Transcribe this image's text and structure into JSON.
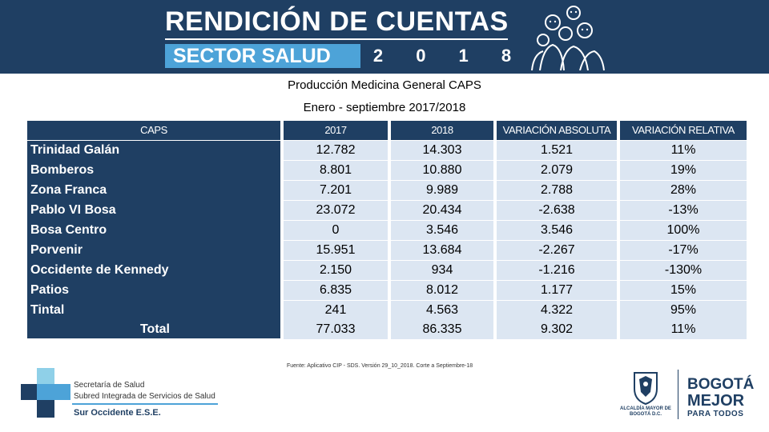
{
  "header": {
    "title": "RENDICIÓN DE CUENTAS",
    "sector": "SECTOR SALUD",
    "year_digits": [
      "2",
      "0",
      "1",
      "8"
    ]
  },
  "subtitle": "Producción Medicina General CAPS",
  "period": "Enero - septiembre 2017/2018",
  "table": {
    "headers": [
      "CAPS",
      "2017",
      "2018",
      "VARIACIÓN ABSOLUTA",
      "VARIACIÓN RELATIVA"
    ],
    "rows": [
      {
        "name": "Trinidad Galán",
        "y2017": "12.782",
        "y2018": "14.303",
        "abs": "1.521",
        "rel": "11%"
      },
      {
        "name": "Bomberos",
        "y2017": "8.801",
        "y2018": "10.880",
        "abs": "2.079",
        "rel": "19%"
      },
      {
        "name": "Zona Franca",
        "y2017": "7.201",
        "y2018": "9.989",
        "abs": "2.788",
        "rel": "28%"
      },
      {
        "name": "Pablo VI Bosa",
        "y2017": "23.072",
        "y2018": "20.434",
        "abs": "-2.638",
        "rel": "-13%"
      },
      {
        "name": "Bosa Centro",
        "y2017": "0",
        "y2018": "3.546",
        "abs": "3.546",
        "rel": "100%"
      },
      {
        "name": "Porvenir",
        "y2017": "15.951",
        "y2018": "13.684",
        "abs": "-2.267",
        "rel": "-17%"
      },
      {
        "name": "Occidente de Kennedy",
        "y2017": "2.150",
        "y2018": "934",
        "abs": "-1.216",
        "rel": "-130%"
      },
      {
        "name": "Patios",
        "y2017": "6.835",
        "y2018": "8.012",
        "abs": "1.177",
        "rel": "15%"
      },
      {
        "name": "Tintal",
        "y2017": "241",
        "y2018": "4.563",
        "abs": "4.322",
        "rel": "95%"
      },
      {
        "name": "Total",
        "y2017": "77.033",
        "y2018": "86.335",
        "abs": "9.302",
        "rel": "11%"
      }
    ]
  },
  "source_note": "Fuente: Aplicativo CIP - SDS. Versión 29_10_2018. Corte a Septiembre-18",
  "logo_left": {
    "line1": "Secretaría de Salud",
    "line2": "Subred Integrada de Servicios de Salud",
    "line3": "Sur Occidente E.S.E."
  },
  "logo_right": {
    "alcaldia": "ALCALDÍA MAYOR DE BOGOTÁ D.C.",
    "bogota_1": "BOGOTÁ",
    "bogota_2": "MEJOR",
    "bogota_3": "PARA TODOS"
  },
  "colors": {
    "navy": "#1f3f63",
    "light_blue": "#4da3d8",
    "cell_bg": "#dce6f2",
    "orange": "#f39200",
    "green": "#8dc63f"
  }
}
